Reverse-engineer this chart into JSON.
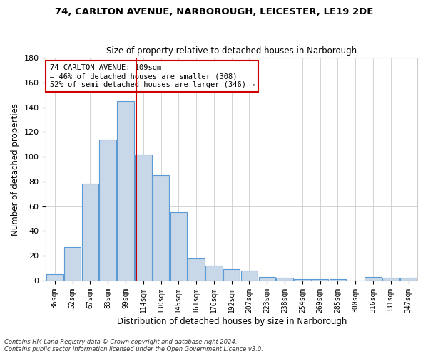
{
  "title1": "74, CARLTON AVENUE, NARBOROUGH, LEICESTER, LE19 2DE",
  "title2": "Size of property relative to detached houses in Narborough",
  "xlabel": "Distribution of detached houses by size in Narborough",
  "ylabel": "Number of detached properties",
  "bin_labels": [
    "36sqm",
    "52sqm",
    "67sqm",
    "83sqm",
    "99sqm",
    "114sqm",
    "130sqm",
    "145sqm",
    "161sqm",
    "176sqm",
    "192sqm",
    "207sqm",
    "223sqm",
    "238sqm",
    "254sqm",
    "269sqm",
    "285sqm",
    "300sqm",
    "316sqm",
    "331sqm",
    "347sqm"
  ],
  "bar_heights": [
    5,
    27,
    78,
    114,
    145,
    102,
    85,
    55,
    18,
    12,
    9,
    8,
    3,
    2,
    1,
    1,
    1,
    0,
    3,
    2,
    2
  ],
  "bar_color": "#c8d8e8",
  "bar_edge_color": "#5b9bd5",
  "vline_x": 4.6,
  "vline_color": "#cc0000",
  "annotation_text": "74 CARLTON AVENUE: 109sqm\n← 46% of detached houses are smaller (308)\n52% of semi-detached houses are larger (346) →",
  "annotation_box_color": "#ffffff",
  "annotation_box_edge": "#cc0000",
  "ylim": [
    0,
    180
  ],
  "yticks": [
    0,
    20,
    40,
    60,
    80,
    100,
    120,
    140,
    160,
    180
  ],
  "bg_color": "#ffffff",
  "grid_color": "#cccccc",
  "footnote1": "Contains HM Land Registry data © Crown copyright and database right 2024.",
  "footnote2": "Contains public sector information licensed under the Open Government Licence v3.0."
}
